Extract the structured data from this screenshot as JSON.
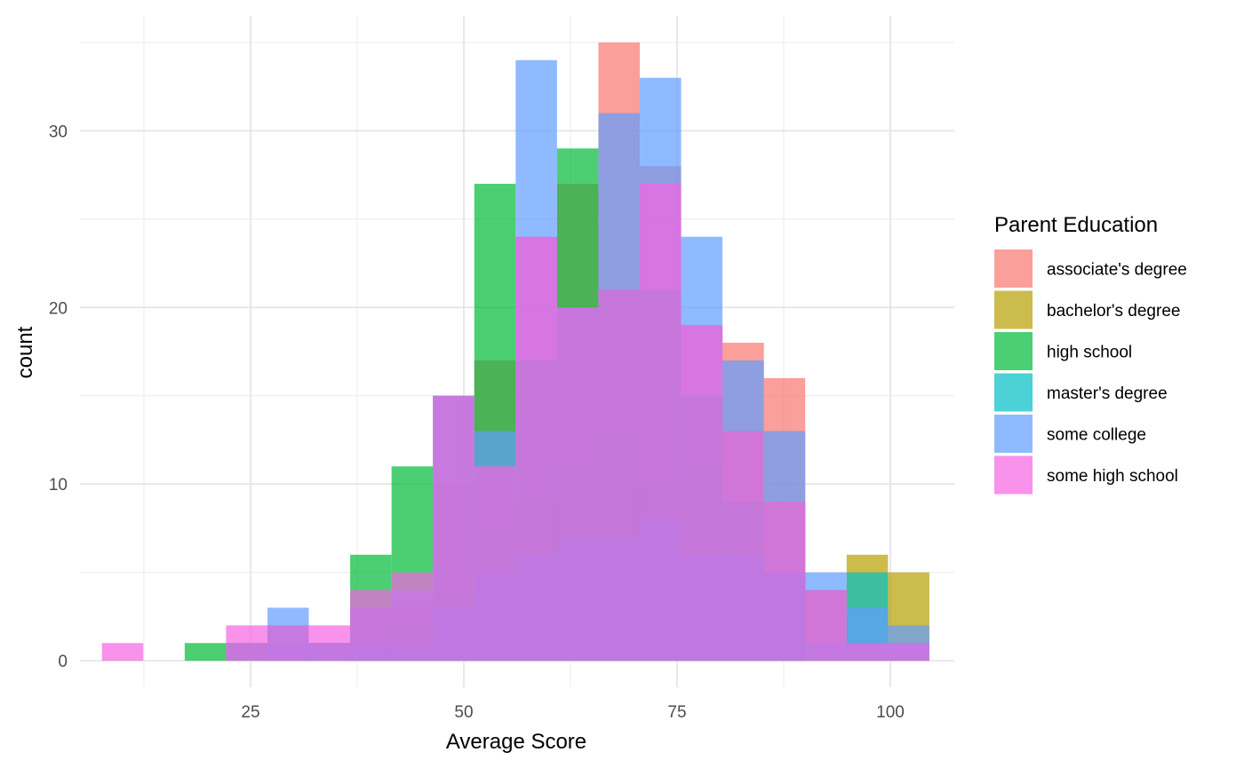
{
  "chart_data": {
    "type": "bar",
    "subtype": "overlapping-histogram",
    "xlabel": "Average Score",
    "ylabel": "count",
    "xlim": [
      5,
      107.5
    ],
    "ylim": [
      -1.5,
      36.5
    ],
    "bin_width": 4.848,
    "bin_centers": [
      10.0,
      14.85,
      19.7,
      24.55,
      29.4,
      34.25,
      39.1,
      43.95,
      48.8,
      53.65,
      58.5,
      63.35,
      68.2,
      73.05,
      77.9,
      82.75,
      87.6,
      92.45,
      97.3,
      102.15
    ],
    "x_ticks": [
      25,
      50,
      75,
      100
    ],
    "x_tick_labels": [
      "25",
      "50",
      "75",
      "100"
    ],
    "y_ticks": [
      0,
      10,
      20,
      30
    ],
    "y_tick_labels": [
      "0",
      "10",
      "20",
      "30"
    ],
    "grid": true,
    "legend": {
      "title": "Parent Education",
      "position": "right"
    },
    "series": [
      {
        "name": "associate's degree",
        "color": "#F8766D",
        "values": [
          0,
          0,
          0,
          1,
          1,
          1,
          3,
          3,
          10,
          17,
          24,
          27,
          35,
          28,
          19,
          18,
          16,
          4,
          1,
          0
        ]
      },
      {
        "name": "bachelor's degree",
        "color": "#B79F00",
        "values": [
          0,
          0,
          0,
          0,
          0,
          0,
          1,
          2,
          4,
          7,
          9,
          11,
          13,
          10,
          11,
          13,
          9,
          4,
          6,
          5
        ]
      },
      {
        "name": "high school",
        "color": "#00BA38",
        "values": [
          0,
          0,
          1,
          1,
          2,
          1,
          6,
          11,
          15,
          27,
          17,
          29,
          21,
          21,
          15,
          9,
          5,
          0,
          0,
          0
        ]
      },
      {
        "name": "master's degree",
        "color": "#00BFC4",
        "values": [
          0,
          0,
          0,
          0,
          1,
          1,
          1,
          1,
          3,
          5,
          6,
          7,
          7,
          8,
          6,
          6,
          5,
          1,
          5,
          1
        ]
      },
      {
        "name": "some college",
        "color": "#619CFF",
        "values": [
          0,
          0,
          0,
          1,
          3,
          1,
          3,
          4,
          15,
          13,
          34,
          20,
          31,
          33,
          24,
          17,
          13,
          5,
          3,
          2
        ]
      },
      {
        "name": "some high school",
        "color": "#F564E3",
        "values": [
          1,
          0,
          0,
          2,
          2,
          2,
          4,
          5,
          15,
          11,
          24,
          20,
          21,
          27,
          19,
          13,
          9,
          4,
          1,
          1
        ]
      }
    ]
  }
}
